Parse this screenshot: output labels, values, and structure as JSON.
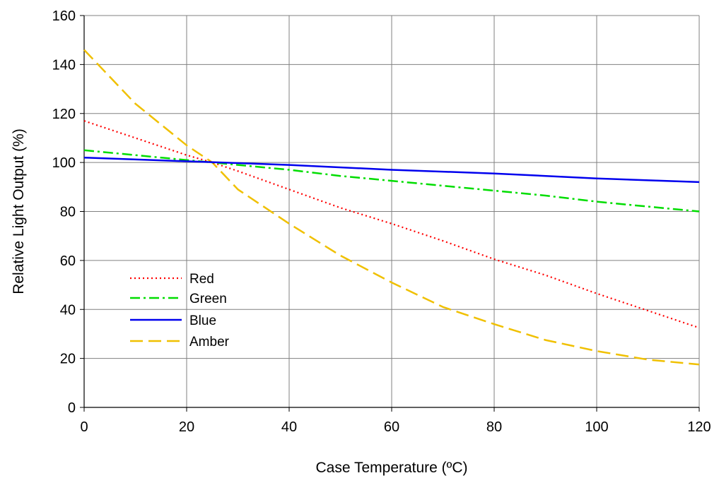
{
  "chart_data": {
    "type": "line",
    "title": "",
    "xlabel": "Case Temperature (ºC)",
    "ylabel": "Relative Light Output (%)",
    "xlim": [
      0,
      120
    ],
    "ylim": [
      0,
      160
    ],
    "xticks": [
      0,
      20,
      40,
      60,
      80,
      100,
      120
    ],
    "yticks": [
      0,
      20,
      40,
      60,
      80,
      100,
      120,
      140,
      160
    ],
    "grid": true,
    "legend_position": "lower-left",
    "series": [
      {
        "name": "Red",
        "color": "#ff0000",
        "dash": "dotted",
        "x": [
          0,
          10,
          20,
          25,
          30,
          40,
          50,
          60,
          70,
          80,
          90,
          100,
          110,
          120
        ],
        "y": [
          117,
          110,
          103,
          100,
          96.5,
          89,
          81.5,
          75,
          68,
          60.5,
          54,
          46.5,
          39.5,
          32.5
        ]
      },
      {
        "name": "Green",
        "color": "#00dd00",
        "dash": "dash-dot",
        "x": [
          0,
          10,
          20,
          25,
          30,
          40,
          50,
          60,
          70,
          80,
          90,
          100,
          110,
          120
        ],
        "y": [
          105,
          103,
          101,
          100,
          99,
          97,
          94.5,
          92.5,
          90.5,
          88.5,
          86.5,
          84,
          82,
          80
        ]
      },
      {
        "name": "Blue",
        "color": "#0000ee",
        "dash": "solid",
        "x": [
          0,
          20,
          40,
          60,
          80,
          100,
          120
        ],
        "y": [
          102,
          100.5,
          99,
          97,
          95.5,
          93.5,
          92
        ]
      },
      {
        "name": "Amber",
        "color": "#f0c000",
        "dash": "dashed",
        "x": [
          0,
          10,
          20,
          25,
          30,
          40,
          50,
          60,
          70,
          80,
          90,
          100,
          110,
          120
        ],
        "y": [
          146,
          124,
          107,
          100,
          89,
          75,
          62,
          51,
          41,
          34,
          27.5,
          23,
          19.5,
          17.5
        ]
      }
    ]
  }
}
